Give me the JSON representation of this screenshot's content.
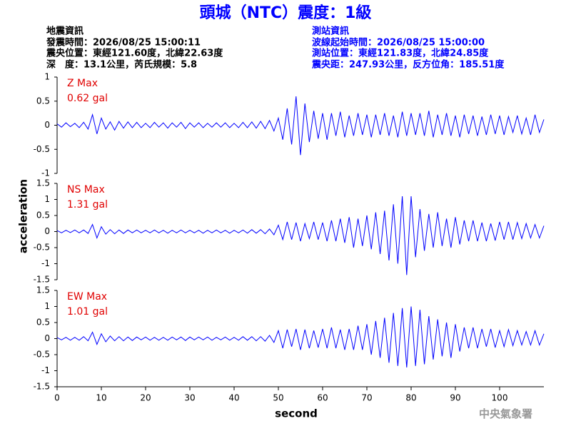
{
  "header": {
    "title": "頭城（NTC）震度：1級",
    "left": [
      "地震資訊",
      "發震時間：2026/08/25 15:00:11",
      "震央位置：東經121.60度，北緯22.63度",
      "深　度：13.1公里，芮氏規模：5.8"
    ],
    "right": [
      "測站資訊",
      "波線起始時間：2026/08/25 15:00:00",
      "測站位置：東經121.83度，北緯24.85度",
      "震央距：247.93公里，反方位角：185.51度"
    ]
  },
  "footer": "中央氣象署",
  "chart_data": {
    "type": "line",
    "xlabel": "second",
    "ylabel": "acceleration",
    "xlim": [
      0,
      110
    ],
    "xticks": [
      0,
      10,
      20,
      30,
      40,
      50,
      60,
      70,
      80,
      90,
      100
    ],
    "x": [
      0,
      1,
      2,
      3,
      4,
      5,
      6,
      7,
      8,
      9,
      10,
      11,
      12,
      13,
      14,
      15,
      16,
      17,
      18,
      19,
      20,
      21,
      22,
      23,
      24,
      25,
      26,
      27,
      28,
      29,
      30,
      31,
      32,
      33,
      34,
      35,
      36,
      37,
      38,
      39,
      40,
      41,
      42,
      43,
      44,
      45,
      46,
      47,
      48,
      49,
      50,
      51,
      52,
      53,
      54,
      55,
      56,
      57,
      58,
      59,
      60,
      61,
      62,
      63,
      64,
      65,
      66,
      67,
      68,
      69,
      70,
      71,
      72,
      73,
      74,
      75,
      76,
      77,
      78,
      79,
      80,
      81,
      82,
      83,
      84,
      85,
      86,
      87,
      88,
      89,
      90,
      91,
      92,
      93,
      94,
      95,
      96,
      97,
      98,
      99,
      100,
      101,
      102,
      103,
      104,
      105,
      106,
      107,
      108,
      109,
      110
    ],
    "series": [
      {
        "label": "Z Max",
        "max_text": "0.62 gal",
        "color": "#0000ff",
        "ylim": [
          -1,
          1
        ],
        "yticks": [
          -1,
          -0.5,
          0,
          0.5,
          1
        ],
        "values": [
          0.03,
          -0.04,
          0.05,
          -0.03,
          0.04,
          -0.05,
          0.06,
          -0.08,
          0.22,
          -0.18,
          0.15,
          -0.08,
          0.07,
          -0.1,
          0.08,
          -0.06,
          0.07,
          -0.05,
          0.06,
          -0.05,
          0.04,
          -0.05,
          0.06,
          -0.04,
          0.05,
          -0.06,
          0.05,
          -0.04,
          0.06,
          -0.07,
          0.05,
          -0.04,
          0.05,
          -0.05,
          0.04,
          -0.04,
          0.05,
          -0.04,
          0.05,
          -0.05,
          0.04,
          -0.05,
          0.06,
          -0.05,
          0.07,
          -0.06,
          0.08,
          -0.07,
          0.1,
          -0.12,
          0.15,
          -0.3,
          0.35,
          -0.4,
          0.6,
          -0.62,
          0.45,
          -0.35,
          0.3,
          -0.28,
          0.25,
          -0.3,
          0.25,
          -0.22,
          0.28,
          -0.25,
          0.2,
          -0.22,
          0.25,
          -0.2,
          0.22,
          -0.25,
          0.22,
          -0.2,
          0.25,
          -0.22,
          0.2,
          -0.25,
          0.28,
          -0.22,
          0.25,
          -0.2,
          0.25,
          -0.22,
          0.3,
          -0.25,
          0.22,
          -0.2,
          0.25,
          -0.22,
          0.2,
          -0.25,
          0.22,
          -0.18,
          0.2,
          -0.22,
          0.18,
          -0.2,
          0.22,
          -0.18,
          0.2,
          -0.2,
          0.18,
          -0.15,
          0.2,
          -0.18,
          0.15,
          -0.2,
          0.22,
          -0.15,
          0.12
        ]
      },
      {
        "label": "NS Max",
        "max_text": "1.31 gal",
        "color": "#0000ff",
        "ylim": [
          -1.5,
          1.5
        ],
        "yticks": [
          -1.5,
          -1,
          -0.5,
          0,
          0.5,
          1,
          1.5
        ],
        "values": [
          0.03,
          -0.04,
          0.04,
          -0.03,
          0.05,
          -0.04,
          0.05,
          -0.06,
          0.22,
          -0.2,
          0.15,
          -0.08,
          0.06,
          -0.07,
          0.05,
          -0.06,
          0.05,
          -0.04,
          0.05,
          -0.04,
          0.04,
          -0.04,
          0.05,
          -0.04,
          0.04,
          -0.05,
          0.04,
          -0.04,
          0.05,
          -0.04,
          0.04,
          -0.04,
          0.04,
          -0.05,
          0.04,
          -0.04,
          0.05,
          -0.04,
          0.04,
          -0.05,
          0.04,
          -0.04,
          0.05,
          -0.05,
          0.06,
          -0.05,
          0.06,
          -0.07,
          0.08,
          -0.1,
          0.2,
          -0.25,
          0.3,
          -0.25,
          0.28,
          -0.3,
          0.25,
          -0.22,
          0.3,
          -0.25,
          0.28,
          -0.3,
          0.35,
          -0.3,
          0.4,
          -0.35,
          0.45,
          -0.5,
          0.4,
          -0.45,
          0.5,
          -0.55,
          0.6,
          -0.7,
          0.65,
          -0.9,
          0.85,
          -1.0,
          1.1,
          -1.35,
          1.1,
          -0.8,
          0.7,
          -0.6,
          0.55,
          -0.5,
          0.6,
          -0.45,
          0.4,
          -0.5,
          0.45,
          -0.4,
          0.35,
          -0.3,
          0.35,
          -0.3,
          0.28,
          -0.3,
          0.25,
          -0.28,
          0.3,
          -0.25,
          0.3,
          -0.25,
          0.28,
          -0.22,
          0.25,
          -0.2,
          0.22,
          -0.2,
          0.18
        ]
      },
      {
        "label": "EW Max",
        "max_text": "1.01 gal",
        "color": "#0000ff",
        "ylim": [
          -1.5,
          1.5
        ],
        "yticks": [
          -1.5,
          -1,
          -0.5,
          0,
          0.5,
          1,
          1.5
        ],
        "values": [
          0.03,
          -0.04,
          0.04,
          -0.05,
          0.04,
          -0.05,
          0.06,
          -0.07,
          0.2,
          -0.18,
          0.15,
          -0.1,
          0.08,
          -0.07,
          0.06,
          -0.07,
          0.05,
          -0.06,
          0.05,
          -0.04,
          0.05,
          -0.05,
          0.04,
          -0.05,
          0.04,
          -0.05,
          0.05,
          -0.04,
          0.05,
          -0.06,
          0.05,
          -0.04,
          0.05,
          -0.04,
          0.05,
          -0.05,
          0.04,
          -0.04,
          0.05,
          -0.05,
          0.04,
          -0.05,
          0.06,
          -0.05,
          0.06,
          -0.07,
          0.06,
          -0.08,
          0.1,
          -0.12,
          0.25,
          -0.3,
          0.28,
          -0.25,
          0.3,
          -0.35,
          0.28,
          -0.3,
          0.25,
          -0.28,
          0.3,
          -0.3,
          0.35,
          -0.3,
          0.28,
          -0.35,
          0.3,
          -0.35,
          0.4,
          -0.35,
          0.45,
          -0.5,
          0.55,
          -0.6,
          0.65,
          -0.75,
          0.8,
          -0.85,
          0.95,
          -0.9,
          1.0,
          -0.85,
          0.9,
          -0.8,
          0.7,
          -0.65,
          0.6,
          -0.55,
          0.5,
          -0.6,
          0.45,
          -0.4,
          0.35,
          -0.3,
          0.35,
          -0.3,
          0.3,
          -0.25,
          0.3,
          -0.28,
          0.25,
          -0.25,
          0.28,
          -0.22,
          0.25,
          -0.2,
          0.22,
          -0.2,
          0.25,
          -0.2,
          0.15
        ]
      }
    ]
  }
}
